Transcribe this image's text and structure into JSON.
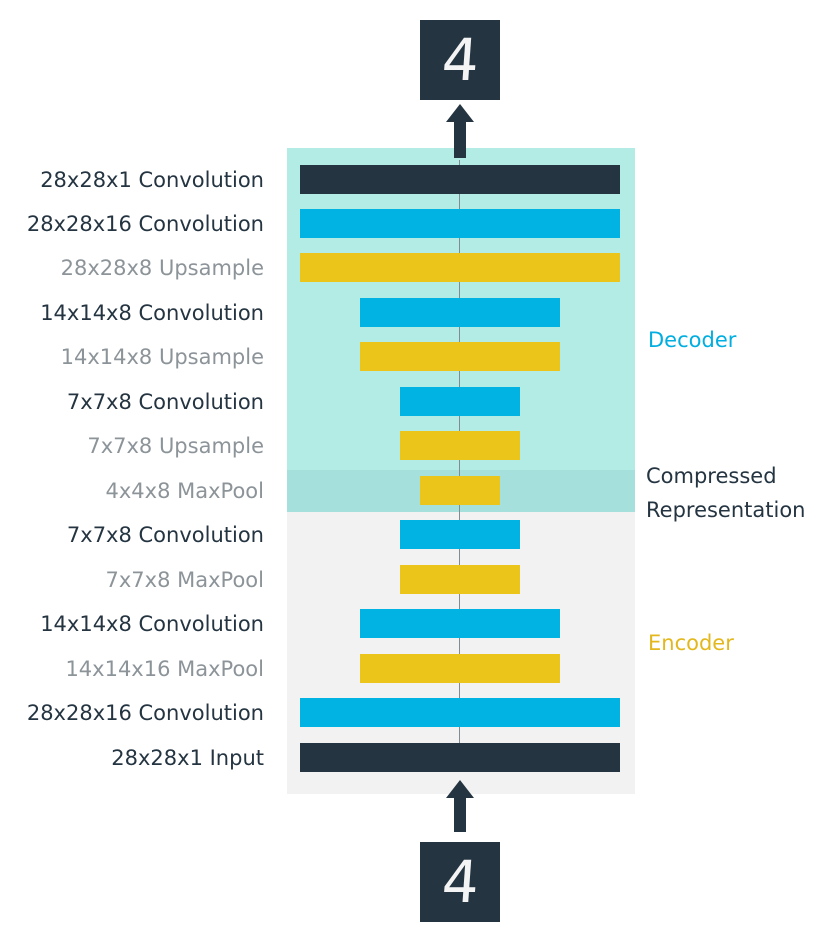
{
  "colors": {
    "decoder_bg": "#b3ece5",
    "compressed_bg": "#a6e0dc",
    "encoder_bg": "#f2f2f2",
    "convolution_blue": "#00b3e3",
    "pool_upsample_yellow": "#ecc51a",
    "io_dark": "#243441",
    "label_dark": "#243441",
    "label_gray": "#8c9499",
    "decoder_text": "#00aee0",
    "encoder_text": "#e3b81f"
  },
  "output_digit": "4",
  "input_digit": "4",
  "layers": [
    {
      "label": "28x28x1 Convolution",
      "kind": "io"
    },
    {
      "label": "28x28x16 Convolution",
      "kind": "conv"
    },
    {
      "label": "28x28x8 Upsample",
      "kind": "pool"
    },
    {
      "label": "14x14x8 Convolution",
      "kind": "conv"
    },
    {
      "label": "14x14x8 Upsample",
      "kind": "pool"
    },
    {
      "label": "7x7x8 Convolution",
      "kind": "conv"
    },
    {
      "label": "7x7x8 Upsample",
      "kind": "pool"
    },
    {
      "label": "4x4x8 MaxPool",
      "kind": "pool"
    },
    {
      "label": "7x7x8 Convolution",
      "kind": "conv"
    },
    {
      "label": "7x7x8 MaxPool",
      "kind": "pool"
    },
    {
      "label": "14x14x8 Convolution",
      "kind": "conv"
    },
    {
      "label": "14x14x16 MaxPool",
      "kind": "pool"
    },
    {
      "label": "28x28x16 Convolution",
      "kind": "conv"
    },
    {
      "label": "28x28x1 Input",
      "kind": "io"
    }
  ],
  "sections": {
    "decoder": "Decoder",
    "compressed_line1": "Compressed",
    "compressed_line2": "Representation",
    "encoder": "Encoder"
  }
}
